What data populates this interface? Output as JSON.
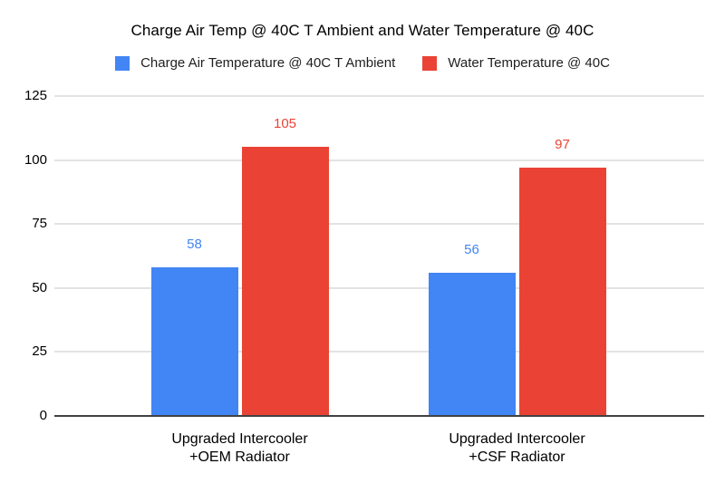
{
  "chart_data": {
    "type": "bar",
    "title": "Charge Air Temp @ 40C T Ambient and Water Temperature @ 40C",
    "categories": [
      "Upgraded Intercooler\n+OEM Radiator",
      "Upgraded Intercooler\n+CSF Radiator"
    ],
    "series": [
      {
        "name": "Charge Air Temperature @ 40C T Ambient",
        "color": "#4285F4",
        "values": [
          58,
          56
        ]
      },
      {
        "name": "Water Temperature @ 40C",
        "color": "#EA4335",
        "values": [
          105,
          97
        ]
      }
    ],
    "y_ticks": [
      0,
      25,
      50,
      75,
      100,
      125
    ],
    "ylim": [
      0,
      125
    ],
    "xlabel": "",
    "ylabel": "",
    "grid": true,
    "legend_position": "top",
    "colors": {
      "gridline": "#e3e3e3",
      "axis_line": "#424242",
      "title_text": "#000000",
      "tick_text": "#000000"
    }
  }
}
